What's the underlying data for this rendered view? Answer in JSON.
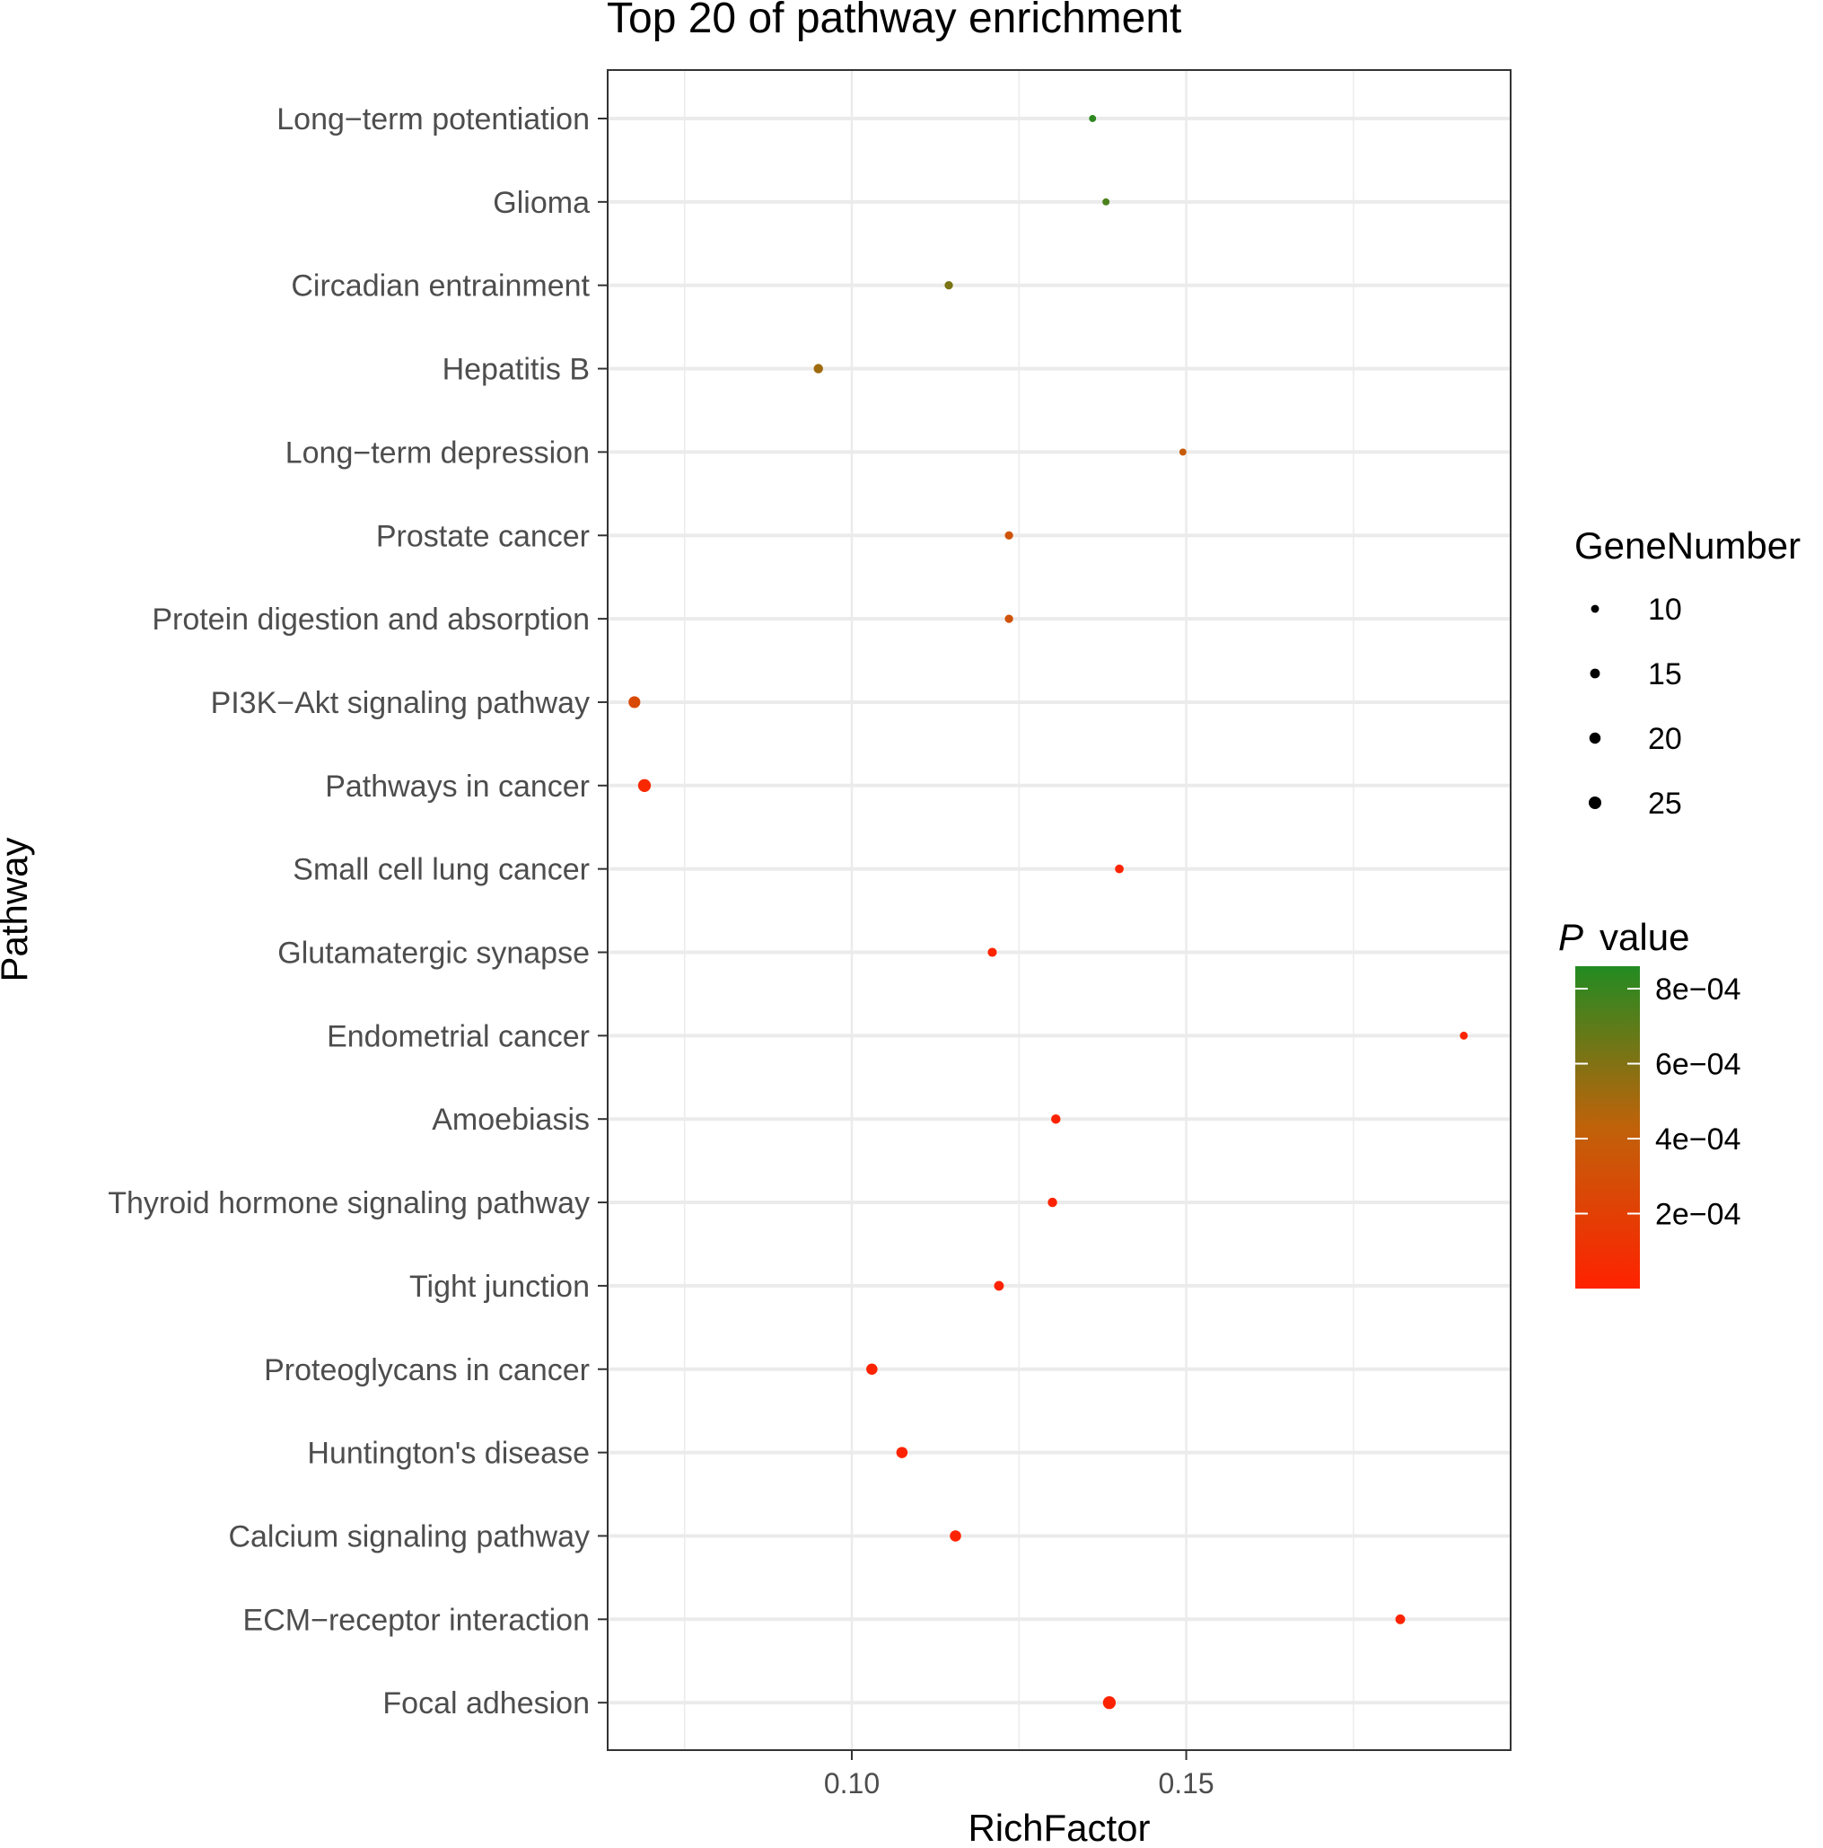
{
  "chart_data": {
    "type": "scatter",
    "title": "Top 20 of pathway enrichment",
    "xlabel": "RichFactor",
    "ylabel": "Pathway",
    "xlim": [
      0.0635,
      0.1985
    ],
    "xticks": [
      0.1,
      0.15
    ],
    "xtick_labels": [
      "0.10",
      "0.15"
    ],
    "grid": true,
    "pathways": [
      {
        "name": "Long−term potentiation",
        "rich_factor": 0.136,
        "gene_number": 8,
        "p_value": 0.00083
      },
      {
        "name": "Glioma",
        "rich_factor": 0.138,
        "gene_number": 8,
        "p_value": 0.00075
      },
      {
        "name": "Circadian entrainment",
        "rich_factor": 0.1145,
        "gene_number": 11,
        "p_value": 0.00062
      },
      {
        "name": "Hepatitis B",
        "rich_factor": 0.095,
        "gene_number": 14,
        "p_value": 0.00052
      },
      {
        "name": "Long−term depression",
        "rich_factor": 0.1495,
        "gene_number": 8,
        "p_value": 0.00038
      },
      {
        "name": "Prostate cancer",
        "rich_factor": 0.1235,
        "gene_number": 11,
        "p_value": 0.00033
      },
      {
        "name": "Protein digestion and absorption",
        "rich_factor": 0.1235,
        "gene_number": 11,
        "p_value": 0.00033
      },
      {
        "name": "PI3K−Akt signaling pathway",
        "rich_factor": 0.0675,
        "gene_number": 22,
        "p_value": 0.00026
      },
      {
        "name": "Pathways in cancer",
        "rich_factor": 0.069,
        "gene_number": 26,
        "p_value": 5e-05
      },
      {
        "name": "Small cell lung cancer",
        "rich_factor": 0.14,
        "gene_number": 12,
        "p_value": 2e-05
      },
      {
        "name": "Glutamatergic synapse",
        "rich_factor": 0.121,
        "gene_number": 13,
        "p_value": 2e-05
      },
      {
        "name": "Endometrial cancer",
        "rich_factor": 0.1915,
        "gene_number": 10,
        "p_value": 2e-05
      },
      {
        "name": "Amoebiasis",
        "rich_factor": 0.1305,
        "gene_number": 14,
        "p_value": 1e-05
      },
      {
        "name": "Thyroid hormone signaling pathway",
        "rich_factor": 0.13,
        "gene_number": 14,
        "p_value": 1e-05
      },
      {
        "name": "Tight junction",
        "rich_factor": 0.122,
        "gene_number": 15,
        "p_value": 1e-05
      },
      {
        "name": "Proteoglycans in cancer",
        "rich_factor": 0.103,
        "gene_number": 20,
        "p_value": 5e-06
      },
      {
        "name": "Huntington's disease",
        "rich_factor": 0.1075,
        "gene_number": 20,
        "p_value": 5e-06
      },
      {
        "name": "Calcium signaling pathway",
        "rich_factor": 0.1155,
        "gene_number": 20,
        "p_value": 5e-06
      },
      {
        "name": "ECM−receptor interaction",
        "rich_factor": 0.182,
        "gene_number": 15,
        "p_value": 5e-06
      },
      {
        "name": "Focal adhesion",
        "rich_factor": 0.1385,
        "gene_number": 26,
        "p_value": 1e-06
      }
    ],
    "size_legend": {
      "title": "GeneNumber",
      "entries": [
        10,
        15,
        20,
        25
      ],
      "labels": [
        "10",
        "15",
        "20",
        "25"
      ]
    },
    "color_legend": {
      "title_italic": "P",
      "title_rest": "value",
      "min": 0,
      "max": 0.00086,
      "low_color": "#ff2200",
      "high_color": "#228b22",
      "ticks": [
        0.0002,
        0.0004,
        0.0006,
        0.0008
      ],
      "tick_labels": [
        "2e−04",
        "4e−04",
        "6e−04",
        "8e−04"
      ]
    },
    "colors": {
      "panel_border": "#333333",
      "gridline": "#ebebeb",
      "tick_text": "#4d4d4d"
    }
  }
}
